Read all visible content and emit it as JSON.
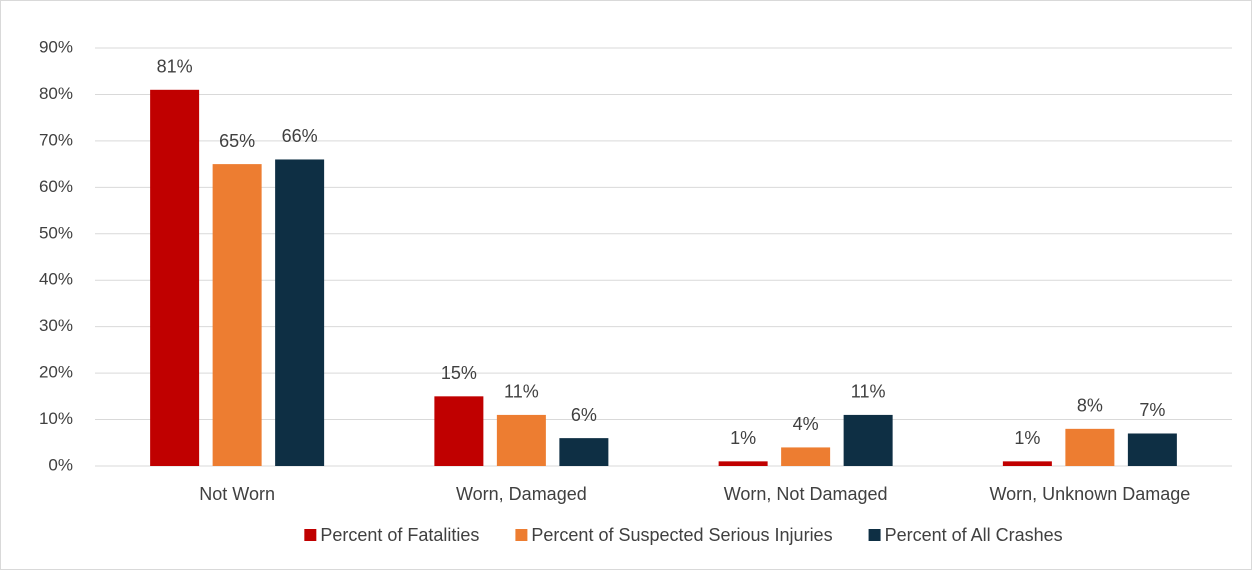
{
  "chart_data": {
    "type": "bar",
    "categories": [
      "Not Worn",
      "Worn, Damaged",
      "Worn, Not Damaged",
      "Worn, Unknown Damage"
    ],
    "series": [
      {
        "name": "Percent of Fatalities",
        "color": "#c00000",
        "values": [
          81,
          15,
          1,
          1
        ],
        "value_labels": [
          "81%",
          "15%",
          "1%",
          "1%"
        ]
      },
      {
        "name": "Percent of Suspected Serious Injuries",
        "color": "#ed7d31",
        "values": [
          65,
          11,
          4,
          8
        ],
        "value_labels": [
          "65%",
          "11%",
          "4%",
          "8%"
        ]
      },
      {
        "name": "Percent of All Crashes",
        "color": "#0e2f44",
        "values": [
          66,
          6,
          11,
          7
        ],
        "value_labels": [
          "66%",
          "6%",
          "11%",
          "7%"
        ]
      }
    ],
    "ylim": [
      0,
      90
    ],
    "yticks": [
      {
        "value": 0,
        "label": "0%"
      },
      {
        "value": 10,
        "label": "10%"
      },
      {
        "value": 20,
        "label": "20%"
      },
      {
        "value": 30,
        "label": "30%"
      },
      {
        "value": 40,
        "label": "40%"
      },
      {
        "value": 50,
        "label": "50%"
      },
      {
        "value": 60,
        "label": "60%"
      },
      {
        "value": 70,
        "label": "70%"
      },
      {
        "value": 80,
        "label": "80%"
      },
      {
        "value": 90,
        "label": "90%"
      }
    ],
    "grid": true,
    "legend": "bottom"
  }
}
